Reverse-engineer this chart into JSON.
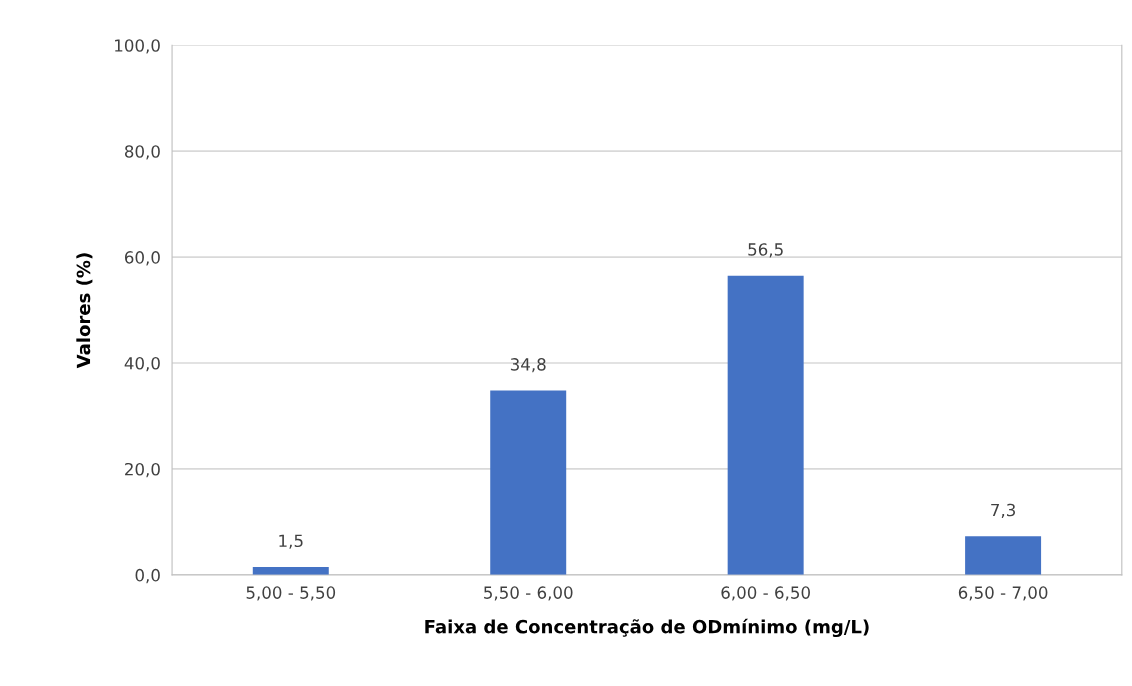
{
  "chart_data": {
    "type": "bar",
    "xlabel": "Faixa de Concentração de ODmínimo (mg/L)",
    "ylabel": "Valores (%)",
    "categories": [
      "5,00 - 5,50",
      "5,50 - 6,00",
      "6,00 - 6,50",
      "6,50 - 7,00"
    ],
    "values": [
      1.5,
      34.8,
      56.5,
      7.3
    ],
    "value_labels": [
      "1,5",
      "34,8",
      "56,5",
      "7,3"
    ],
    "color": "#4472c4",
    "ylim": [
      0,
      100
    ],
    "yticks": [
      {
        "value": 0,
        "label": "0,0"
      },
      {
        "value": 20,
        "label": "20,0"
      },
      {
        "value": 40,
        "label": "40,0"
      },
      {
        "value": 60,
        "label": "60,0"
      },
      {
        "value": 80,
        "label": "80,0"
      },
      {
        "value": 100,
        "label": "100,0"
      }
    ],
    "grid": "y",
    "legend": false
  }
}
